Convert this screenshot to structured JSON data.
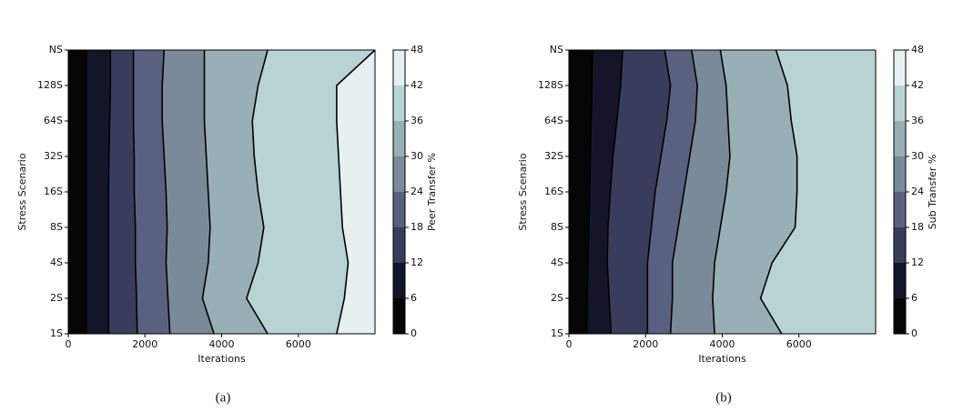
{
  "chart_data": [
    {
      "type": "contour",
      "caption": "(a)",
      "xlabel": "Iterations",
      "ylabel": "Stress Scenario",
      "colorbar_label": "Peer Transfer %",
      "categories": [
        "1S",
        "2S",
        "4S",
        "8S",
        "16S",
        "32S",
        "64S",
        "128S",
        "NS"
      ],
      "xlim": [
        0,
        8000
      ],
      "xticks": [
        0,
        2000,
        4000,
        6000
      ],
      "levels": [
        0,
        6,
        12,
        18,
        24,
        30,
        36,
        42,
        48
      ],
      "colors": [
        "#050505",
        "#15152a",
        "#393c5a",
        "#5a6180",
        "#7a8a98",
        "#98afb5",
        "#b8d3d3",
        "#e6f0f0"
      ],
      "boundaries": [
        [
          470,
          470,
          470,
          470,
          470,
          470,
          470,
          470,
          470
        ],
        [
          1050,
          1050,
          1050,
          1050,
          1050,
          1060,
          1080,
          1100,
          1100
        ],
        [
          1800,
          1780,
          1750,
          1750,
          1720,
          1720,
          1700,
          1700,
          1700
        ],
        [
          2650,
          2600,
          2550,
          2580,
          2550,
          2500,
          2450,
          2450,
          2500
        ],
        [
          3800,
          3500,
          3650,
          3700,
          3650,
          3600,
          3550,
          3550,
          3550
        ],
        [
          5200,
          4650,
          4950,
          5100,
          4950,
          4850,
          4800,
          4950,
          5200
        ],
        [
          7000,
          7200,
          7300,
          7150,
          7100,
          7050,
          7000,
          7000,
          8000
        ]
      ]
    },
    {
      "type": "contour",
      "caption": "(b)",
      "xlabel": "Iterations",
      "ylabel": "Stress Scenario",
      "colorbar_label": "Sub Transfer %",
      "categories": [
        "1S",
        "2S",
        "4S",
        "8S",
        "16S",
        "32S",
        "64S",
        "128S",
        "NS"
      ],
      "xlim": [
        0,
        8000
      ],
      "xticks": [
        0,
        2000,
        4000,
        6000
      ],
      "levels": [
        0,
        6,
        12,
        18,
        24,
        30,
        36,
        42,
        48
      ],
      "colors": [
        "#050505",
        "#15152a",
        "#393c5a",
        "#5a6180",
        "#7a8a98",
        "#98afb5",
        "#b8d3d3",
        "#e6f0f0"
      ],
      "boundaries": [
        [
          470,
          480,
          500,
          520,
          540,
          560,
          580,
          600,
          620
        ],
        [
          1100,
          1050,
          1000,
          1020,
          1080,
          1150,
          1250,
          1350,
          1400
        ],
        [
          2050,
          2050,
          2050,
          2150,
          2250,
          2400,
          2550,
          2650,
          2500
        ],
        [
          2650,
          2700,
          2700,
          2850,
          3000,
          3150,
          3300,
          3350,
          3200
        ],
        [
          3800,
          3750,
          3800,
          3950,
          4100,
          4200,
          4150,
          4100,
          3950
        ],
        [
          5550,
          5000,
          5300,
          5900,
          5950,
          5950,
          5800,
          5700,
          5400
        ]
      ]
    }
  ]
}
